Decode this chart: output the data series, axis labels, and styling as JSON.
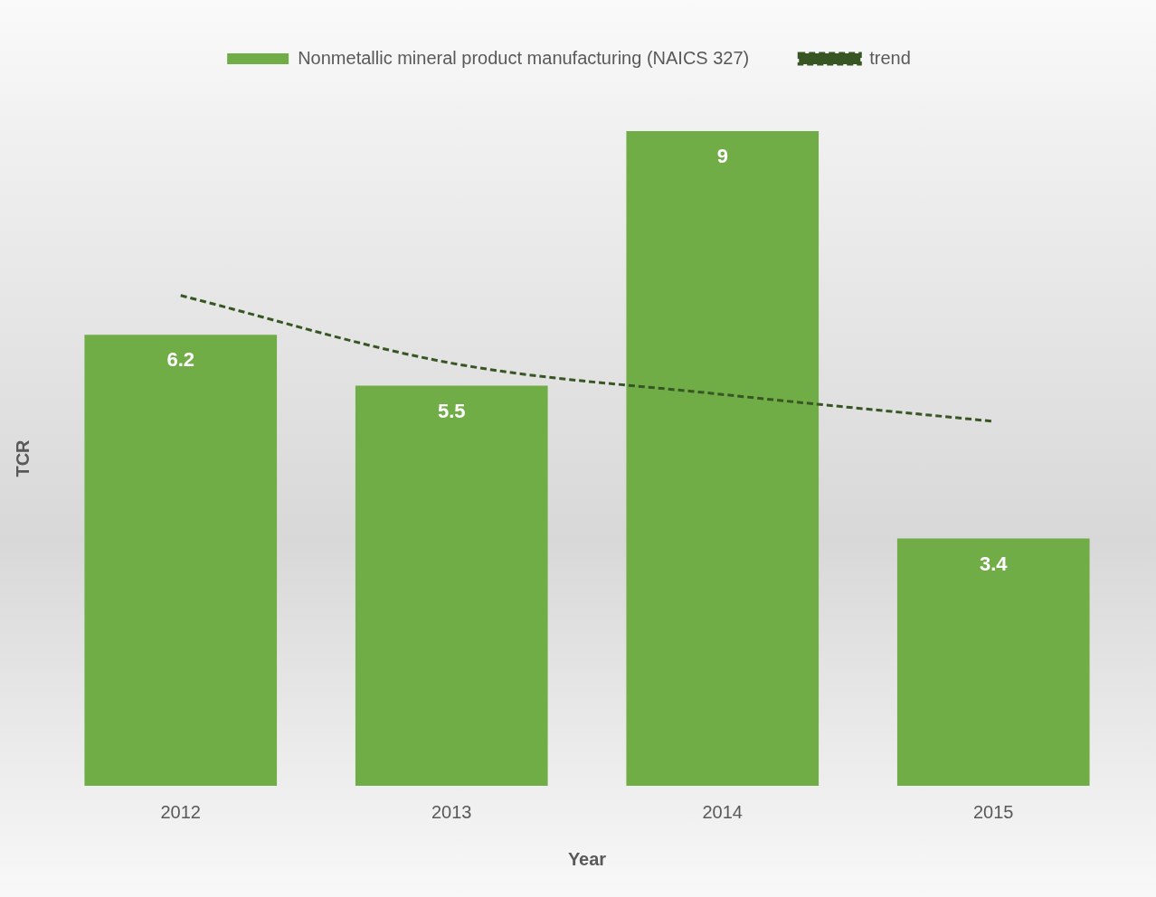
{
  "chart_data": {
    "type": "bar",
    "xlabel": "Year",
    "ylabel": "TCR",
    "categories": [
      "2012",
      "2013",
      "2014",
      "2015"
    ],
    "series": [
      {
        "name": "Nonmetallic mineral product manufacturing (NAICS 327)",
        "color": "#70ad47",
        "values": [
          6.2,
          5.5,
          9,
          3.4
        ],
        "value_labels": [
          "6.2",
          "5.5",
          "9",
          "3.4"
        ]
      },
      {
        "name": "trend",
        "type": "line",
        "color": "#375623",
        "line_style": "dashed",
        "marker": "none",
        "values": [
          6.74,
          5.81,
          5.38,
          5.01
        ]
      }
    ],
    "tick_labels": "x",
    "legend": "top",
    "grid": false
  }
}
